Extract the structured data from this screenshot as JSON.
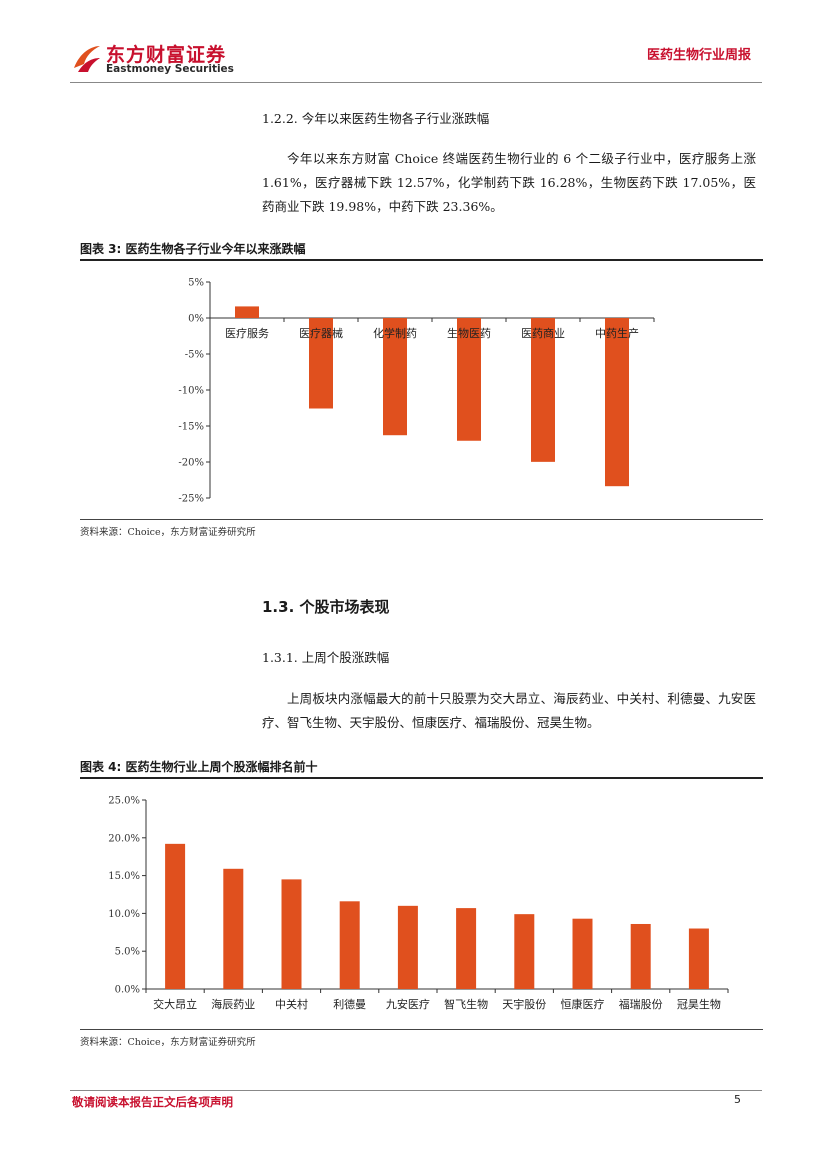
{
  "header": {
    "logo_cn": "东方财富证券",
    "logo_en": "Eastmoney Securities",
    "report_type": "医药生物行业周报"
  },
  "section_122": {
    "heading": "1.2.2.  今年以来医药生物各子行业涨跌幅",
    "paragraph": "今年以来东方财富 Choice 终端医药生物行业的 6 个二级子行业中，医疗服务上涨 1.61%，医疗器械下跌 12.57%，化学制药下跌 16.28%，生物医药下跌 17.05%，医药商业下跌 19.98%，中药下跌 23.36%。"
  },
  "figure3": {
    "title": "图表 3:  医药生物各子行业今年以来涨跌幅",
    "source": "资料来源：Choice，东方财富证券研究所"
  },
  "section_13": {
    "heading": "1.3.  个股市场表现"
  },
  "section_131": {
    "heading": "1.3.1.  上周个股涨跌幅",
    "paragraph": "上周板块内涨幅最大的前十只股票为交大昂立、海辰药业、中关村、利德曼、九安医疗、智飞生物、天宇股份、恒康医疗、福瑞股份、冠昊生物。"
  },
  "figure4": {
    "title": "图表 4:  医药生物行业上周个股涨幅排名前十",
    "source": "资料来源：Choice，东方财富证券研究所"
  },
  "footer": {
    "disclaimer": "敬请阅读本报告正文后各项声明",
    "page_number": "5"
  },
  "colors": {
    "bar": "#e0501e",
    "brand_red": "#c8102e"
  },
  "chart_data": [
    {
      "type": "bar",
      "categories": [
        "医疗服务",
        "医疗器械",
        "化学制药",
        "生物医药",
        "医药商业",
        "中药生产"
      ],
      "values": [
        1.61,
        -12.57,
        -16.28,
        -17.05,
        -19.98,
        -23.36
      ],
      "ylim": [
        -25,
        5
      ],
      "yticks": [
        5,
        0,
        -5,
        -10,
        -15,
        -20,
        -25
      ],
      "ytick_labels": [
        "5%",
        "0%",
        "-5%",
        "-10%",
        "-15%",
        "-20%",
        "-25%"
      ],
      "grid": false
    },
    {
      "type": "bar",
      "categories": [
        "交大昂立",
        "海辰药业",
        "中关村",
        "利德曼",
        "九安医疗",
        "智飞生物",
        "天宇股份",
        "恒康医疗",
        "福瑞股份",
        "冠昊生物"
      ],
      "values": [
        19.2,
        15.9,
        14.5,
        11.6,
        11.0,
        10.7,
        9.9,
        9.3,
        8.6,
        8.0
      ],
      "ylim": [
        0,
        25
      ],
      "yticks": [
        25,
        20,
        15,
        10,
        5,
        0
      ],
      "ytick_labels": [
        "25.0%",
        "20.0%",
        "15.0%",
        "10.0%",
        "5.0%",
        "0.0%"
      ],
      "grid": false
    }
  ]
}
